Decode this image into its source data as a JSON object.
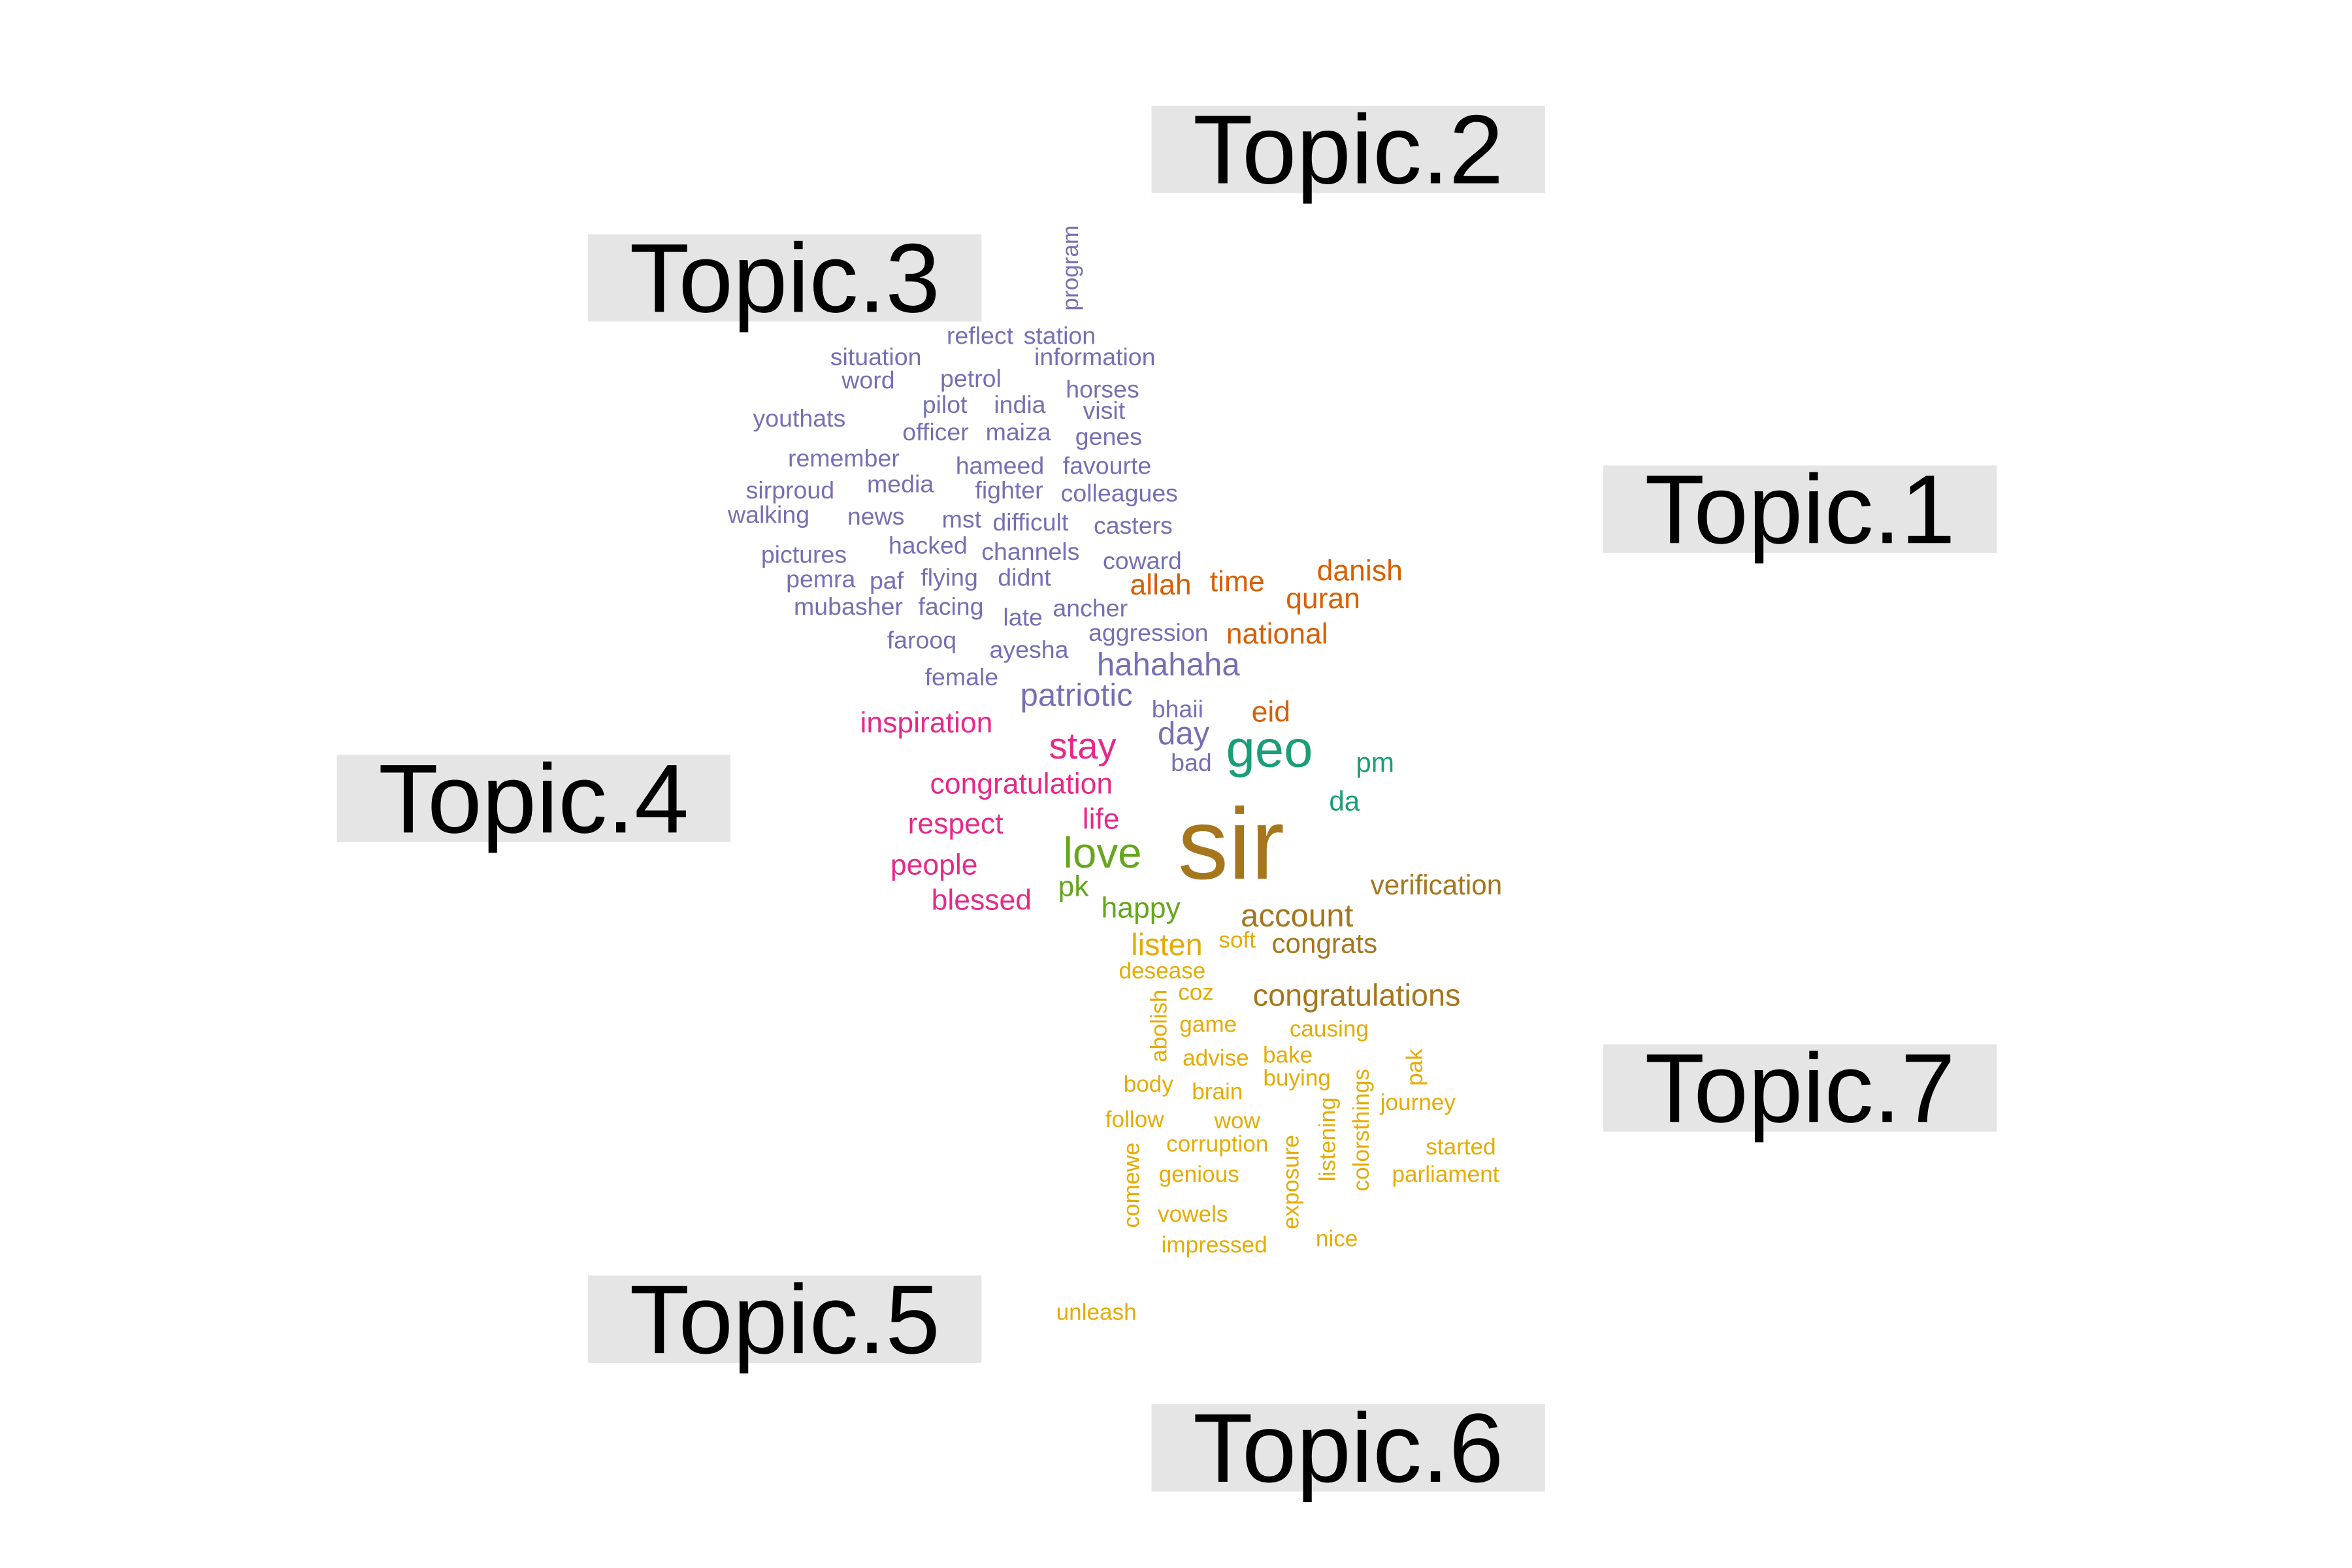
{
  "colors": {
    "label_bg": "#e5e5e5",
    "label_text": "#000000",
    "topic_1": "#d95f02",
    "topic_2": "#1b9e77",
    "topic_3": "#7570b3",
    "topic_4": "#e7298a",
    "topic_5": "#66a61e",
    "topic_6": "#a6761d",
    "topic_7": "#e6ab02"
  },
  "topics": [
    {
      "id": "topic_1",
      "label": "Topic.1"
    },
    {
      "id": "topic_2",
      "label": "Topic.2"
    },
    {
      "id": "topic_3",
      "label": "Topic.3"
    },
    {
      "id": "topic_4",
      "label": "Topic.4"
    },
    {
      "id": "topic_5",
      "label": "Topic.5"
    },
    {
      "id": "topic_6",
      "label": "Topic.6"
    },
    {
      "id": "topic_7",
      "label": "Topic.7"
    }
  ],
  "words": [
    {
      "text": "program",
      "topic": "topic_3"
    },
    {
      "text": "reflect",
      "topic": "topic_3"
    },
    {
      "text": "station",
      "topic": "topic_3"
    },
    {
      "text": "situation",
      "topic": "topic_3"
    },
    {
      "text": "information",
      "topic": "topic_3"
    },
    {
      "text": "word",
      "topic": "topic_3"
    },
    {
      "text": "petrol",
      "topic": "topic_3"
    },
    {
      "text": "horses",
      "topic": "topic_3"
    },
    {
      "text": "pilot",
      "topic": "topic_3"
    },
    {
      "text": "india",
      "topic": "topic_3"
    },
    {
      "text": "visit",
      "topic": "topic_3"
    },
    {
      "text": "youthats",
      "topic": "topic_3"
    },
    {
      "text": "officer",
      "topic": "topic_3"
    },
    {
      "text": "maiza",
      "topic": "topic_3"
    },
    {
      "text": "genes",
      "topic": "topic_3"
    },
    {
      "text": "remember",
      "topic": "topic_3"
    },
    {
      "text": "hameed",
      "topic": "topic_3"
    },
    {
      "text": "favourte",
      "topic": "topic_3"
    },
    {
      "text": "sirproud",
      "topic": "topic_3"
    },
    {
      "text": "media",
      "topic": "topic_3"
    },
    {
      "text": "fighter",
      "topic": "topic_3"
    },
    {
      "text": "colleagues",
      "topic": "topic_3"
    },
    {
      "text": "walking",
      "topic": "topic_3"
    },
    {
      "text": "news",
      "topic": "topic_3"
    },
    {
      "text": "mst",
      "topic": "topic_3"
    },
    {
      "text": "difficult",
      "topic": "topic_3"
    },
    {
      "text": "casters",
      "topic": "topic_3"
    },
    {
      "text": "hacked",
      "topic": "topic_3"
    },
    {
      "text": "channels",
      "topic": "topic_3"
    },
    {
      "text": "pictures",
      "topic": "topic_3"
    },
    {
      "text": "coward",
      "topic": "topic_3"
    },
    {
      "text": "pemra",
      "topic": "topic_3"
    },
    {
      "text": "paf",
      "topic": "topic_3"
    },
    {
      "text": "flying",
      "topic": "topic_3"
    },
    {
      "text": "didnt",
      "topic": "topic_3"
    },
    {
      "text": "mubasher",
      "topic": "topic_3"
    },
    {
      "text": "facing",
      "topic": "topic_3"
    },
    {
      "text": "ancher",
      "topic": "topic_3"
    },
    {
      "text": "late",
      "topic": "topic_3"
    },
    {
      "text": "aggression",
      "topic": "topic_3"
    },
    {
      "text": "farooq",
      "topic": "topic_3"
    },
    {
      "text": "ayesha",
      "topic": "topic_3"
    },
    {
      "text": "hahahaha",
      "topic": "topic_3"
    },
    {
      "text": "female",
      "topic": "topic_3"
    },
    {
      "text": "patriotic",
      "topic": "topic_3"
    },
    {
      "text": "bhaii",
      "topic": "topic_3"
    },
    {
      "text": "day",
      "topic": "topic_3"
    },
    {
      "text": "bad",
      "topic": "topic_3"
    },
    {
      "text": "danish",
      "topic": "topic_1"
    },
    {
      "text": "allah",
      "topic": "topic_1"
    },
    {
      "text": "time",
      "topic": "topic_1"
    },
    {
      "text": "quran",
      "topic": "topic_1"
    },
    {
      "text": "national",
      "topic": "topic_1"
    },
    {
      "text": "eid",
      "topic": "topic_1"
    },
    {
      "text": "geo",
      "topic": "topic_2"
    },
    {
      "text": "pm",
      "topic": "topic_2"
    },
    {
      "text": "da",
      "topic": "topic_2"
    },
    {
      "text": "inspiration",
      "topic": "topic_4"
    },
    {
      "text": "stay",
      "topic": "topic_4"
    },
    {
      "text": "congratulation",
      "topic": "topic_4"
    },
    {
      "text": "life",
      "topic": "topic_4"
    },
    {
      "text": "respect",
      "topic": "topic_4"
    },
    {
      "text": "people",
      "topic": "topic_4"
    },
    {
      "text": "blessed",
      "topic": "topic_4"
    },
    {
      "text": "love",
      "topic": "topic_5"
    },
    {
      "text": "pk",
      "topic": "topic_5"
    },
    {
      "text": "happy",
      "topic": "topic_5"
    },
    {
      "text": "sir",
      "topic": "topic_6"
    },
    {
      "text": "verification",
      "topic": "topic_6"
    },
    {
      "text": "account",
      "topic": "topic_6"
    },
    {
      "text": "congrats",
      "topic": "topic_6"
    },
    {
      "text": "congratulations",
      "topic": "topic_6"
    },
    {
      "text": "listen",
      "topic": "topic_7"
    },
    {
      "text": "soft",
      "topic": "topic_7"
    },
    {
      "text": "desease",
      "topic": "topic_7"
    },
    {
      "text": "coz",
      "topic": "topic_7"
    },
    {
      "text": "abolish",
      "topic": "topic_7"
    },
    {
      "text": "game",
      "topic": "topic_7"
    },
    {
      "text": "causing",
      "topic": "topic_7"
    },
    {
      "text": "advise",
      "topic": "topic_7"
    },
    {
      "text": "bake",
      "topic": "topic_7"
    },
    {
      "text": "pak",
      "topic": "topic_7"
    },
    {
      "text": "body",
      "topic": "topic_7"
    },
    {
      "text": "buying",
      "topic": "topic_7"
    },
    {
      "text": "brain",
      "topic": "topic_7"
    },
    {
      "text": "listening",
      "topic": "topic_7"
    },
    {
      "text": "colorsthings",
      "topic": "topic_7"
    },
    {
      "text": "journey",
      "topic": "topic_7"
    },
    {
      "text": "follow",
      "topic": "topic_7"
    },
    {
      "text": "wow",
      "topic": "topic_7"
    },
    {
      "text": "comewe",
      "topic": "topic_7"
    },
    {
      "text": "corruption",
      "topic": "topic_7"
    },
    {
      "text": "exposure",
      "topic": "topic_7"
    },
    {
      "text": "started",
      "topic": "topic_7"
    },
    {
      "text": "genious",
      "topic": "topic_7"
    },
    {
      "text": "parliament",
      "topic": "topic_7"
    },
    {
      "text": "vowels",
      "topic": "topic_7"
    },
    {
      "text": "nice",
      "topic": "topic_7"
    },
    {
      "text": "impressed",
      "topic": "topic_7"
    },
    {
      "text": "unleash",
      "topic": "topic_7"
    }
  ]
}
